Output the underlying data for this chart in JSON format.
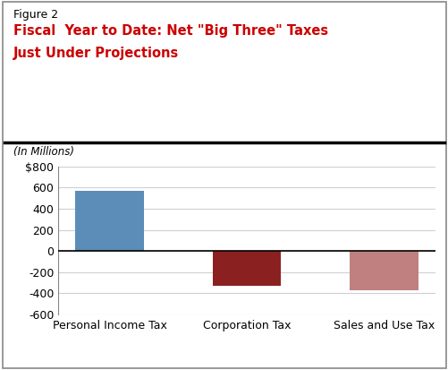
{
  "categories": [
    "Personal Income Tax",
    "Corporation Tax",
    "Sales and Use Tax"
  ],
  "values": [
    570,
    -330,
    -370
  ],
  "bar_colors": [
    "#5b8db8",
    "#8b2020",
    "#c08080"
  ],
  "ylim": [
    -600,
    800
  ],
  "yticks": [
    -600,
    -400,
    -200,
    0,
    200,
    400,
    600,
    800
  ],
  "ytick_labels": [
    "-600",
    "-400",
    "-200",
    "0",
    "200",
    "400",
    "600",
    "$800"
  ],
  "figure_label": "Figure 2",
  "title_line1": "Fiscal  Year to Date: Net \"Big Three\" Taxes",
  "title_line2": "Just Under Projections",
  "subtitle": "(In Millions)",
  "title_color": "#cc0000",
  "figure_label_color": "#000000",
  "background_color": "#ffffff",
  "grid_color": "#d0d0d0",
  "spine_color": "#888888"
}
